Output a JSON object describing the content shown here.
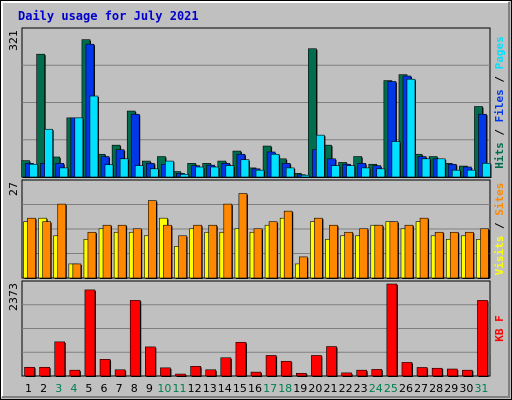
{
  "chart_data": {
    "type": "bar",
    "title": "Daily usage for July 2021",
    "days": [
      "1",
      "2",
      "3",
      "4",
      "5",
      "6",
      "7",
      "8",
      "9",
      "10",
      "11",
      "12",
      "13",
      "14",
      "15",
      "16",
      "17",
      "18",
      "19",
      "20",
      "21",
      "22",
      "23",
      "24",
      "25",
      "26",
      "27",
      "28",
      "29",
      "30",
      "31"
    ],
    "weekend_days": [
      3,
      4,
      10,
      11,
      17,
      18,
      24,
      25,
      31
    ],
    "colors": {
      "hits": "#006d4e",
      "files": "#0037e8",
      "pages": "#00e0ff",
      "visits": "#ffff00",
      "sites": "#ff8800",
      "kbytes": "#ff0000",
      "weekday_label": "#000000",
      "weekend_label": "#008050",
      "title": "#0000cc"
    },
    "panels": [
      {
        "id": "hits",
        "scale_max_label": "321",
        "ylim": [
          0,
          321
        ],
        "legend": [
          {
            "text": "Hits",
            "color": "#006d4e"
          },
          {
            "text": " / ",
            "color": "#000000"
          },
          {
            "text": "Files",
            "color": "#0037e8"
          },
          {
            "text": " / ",
            "color": "#000000"
          },
          {
            "text": "Pages",
            "color": "#00e0ff"
          }
        ],
        "series": [
          {
            "name": "Hits",
            "color": "#006d4e",
            "values": [
              36,
              270,
              44,
              130,
              302,
              50,
              70,
              145,
              35,
              45,
              12,
              30,
              30,
              35,
              57,
              20,
              68,
              40,
              8,
              282,
              70,
              32,
              45,
              28,
              212,
              225,
              50,
              45,
              30,
              24,
              155
            ]
          },
          {
            "name": "Files",
            "color": "#0037e8",
            "values": [
              30,
              30,
              30,
              130,
              292,
              45,
              60,
              138,
              30,
              28,
              8,
              25,
              26,
              30,
              50,
              18,
              55,
              30,
              5,
              60,
              40,
              28,
              30,
              25,
              210,
              222,
              45,
              40,
              28,
              22,
              138
            ]
          },
          {
            "name": "Pages",
            "color": "#00e0ff",
            "values": [
              28,
              105,
              20,
              130,
              178,
              27,
              40,
              25,
              18,
              35,
              6,
              22,
              22,
              25,
              38,
              15,
              50,
              20,
              4,
              92,
              25,
              25,
              20,
              18,
              78,
              215,
              40,
              40,
              15,
              15,
              30
            ]
          }
        ]
      },
      {
        "id": "visits",
        "scale_max_label": "27",
        "ylim": [
          0,
          27
        ],
        "legend": [
          {
            "text": "Visits",
            "color": "#ffff00"
          },
          {
            "text": " / ",
            "color": "#000000"
          },
          {
            "text": "Sites",
            "color": "#ff8800"
          }
        ],
        "series": [
          {
            "name": "Visits",
            "color": "#ffff00",
            "values": [
              16,
              17,
              12,
              4,
              11,
              14,
              13,
              13,
              12,
              17,
              9,
              14,
              13,
              13,
              14,
              13,
              15,
              17,
              4,
              16,
              11,
              12,
              12,
              15,
              16,
              14,
              16,
              12,
              11,
              12,
              11
            ]
          },
          {
            "name": "Sites",
            "color": "#ff8800",
            "values": [
              17,
              16,
              21,
              4,
              13,
              15,
              15,
              14,
              22,
              15,
              12,
              15,
              15,
              21,
              24,
              14,
              16,
              19,
              6,
              17,
              15,
              13,
              14,
              15,
              16,
              15,
              17,
              13,
              13,
              13,
              14
            ]
          }
        ]
      },
      {
        "id": "kbytes",
        "scale_max_label": "2373",
        "ylim": [
          0,
          2373
        ],
        "legend": [
          {
            "text": "KB F",
            "color": "#ff0000"
          }
        ],
        "series": [
          {
            "name": "KBytes",
            "color": "#ff0000",
            "values": [
              225,
              225,
              880,
              150,
              2220,
              430,
              160,
              1950,
              750,
              210,
              50,
              250,
              160,
              470,
              870,
              100,
              530,
              380,
              70,
              530,
              760,
              80,
              150,
              170,
              2373,
              350,
              220,
              200,
              180,
              150,
              1950
            ]
          }
        ]
      }
    ]
  }
}
